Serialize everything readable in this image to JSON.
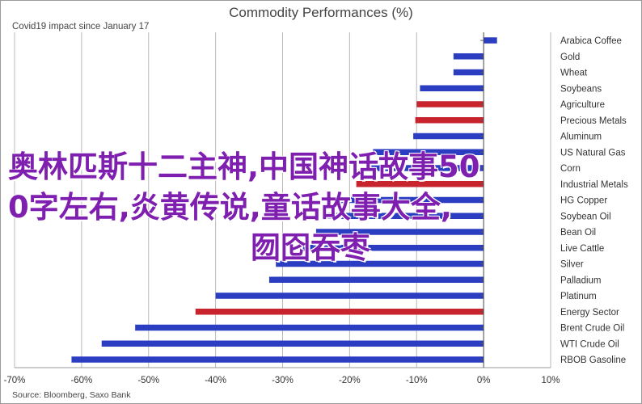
{
  "chart_data": {
    "type": "bar",
    "orientation": "horizontal",
    "title": "Commodity Performances (%)",
    "subtitle": "Covid19 impact since January 17",
    "source": "Source: Bloomberg, Saxo Bank",
    "xlim": [
      -70,
      10
    ],
    "xticks": [
      -70,
      -60,
      -50,
      -40,
      -30,
      -20,
      -10,
      0,
      10
    ],
    "xtick_labels": [
      "-70%",
      "-60%",
      "-50%",
      "-40%",
      "-30%",
      "-20%",
      "-10%",
      "0%",
      "10%"
    ],
    "grid": true,
    "legend": "none",
    "categories": [
      "Arabica Coffee",
      "Gold",
      "Wheat",
      "Soybeans",
      "Agriculture",
      "Precious Metals",
      "Aluminum",
      "US Natural Gas",
      "Corn",
      "Industrial Metals",
      "HG Copper",
      "Soybean Oil",
      "Bean Oil",
      "Live Cattle",
      "Silver",
      "Palladium",
      "Platinum",
      "Energy Sector",
      "Brent Crude Oil",
      "WTI Crude Oil",
      "RBOB Gasoline"
    ],
    "values": [
      2.0,
      -4.5,
      -4.5,
      -9.5,
      -10.0,
      -10.2,
      -10.5,
      -16.5,
      -17.0,
      -19.0,
      -22.0,
      -24.0,
      -25.0,
      -27.0,
      -31.0,
      -32.0,
      -40.0,
      -43.0,
      -52.0,
      -57.0,
      -61.5
    ],
    "colors": [
      "#2b3ec2",
      "#2b3ec2",
      "#2b3ec2",
      "#2b3ec2",
      "#c8242e",
      "#c8242e",
      "#2b3ec2",
      "#2b3ec2",
      "#2b3ec2",
      "#c8242e",
      "#2b3ec2",
      "#2b3ec2",
      "#2b3ec2",
      "#2b3ec2",
      "#2b3ec2",
      "#2b3ec2",
      "#2b3ec2",
      "#c8242e",
      "#2b3ec2",
      "#2b3ec2",
      "#2b3ec2"
    ]
  },
  "overlay": {
    "line1": "奥林匹斯十二主神,中国神话故事50",
    "line2": "0字左右,炎黄传说,童话故事大全,",
    "line3": "囫囵吞枣"
  }
}
